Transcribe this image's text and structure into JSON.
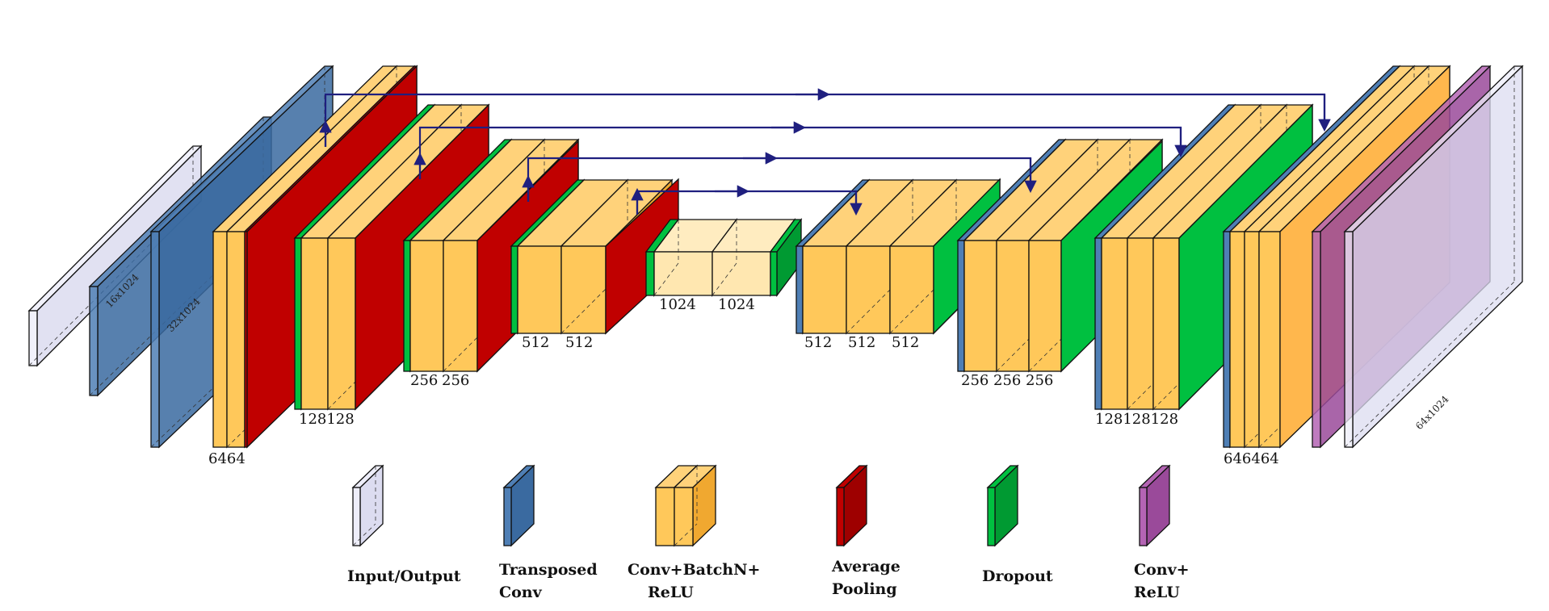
{
  "colors": {
    "conv": "#ffc85a",
    "conv_side": "#f0a830",
    "conv_top": "#ffd27a",
    "pool": "#c00000",
    "pool_side": "#9e0000",
    "dropout": "#00c040",
    "dropout_side": "#009a32",
    "transposed": "#4f7fb5",
    "transposed_side": "#3a6aa0",
    "io": "#eeeefa",
    "io_side": "#dcdcf0",
    "final": "#b464b4",
    "final_side": "#9a4a9a",
    "skip": "#1f1f7f"
  },
  "encoder": {
    "block1": {
      "labels": [
        "64",
        "64"
      ]
    },
    "block2": {
      "labels": [
        "128",
        "128"
      ]
    },
    "block3": {
      "labels": [
        "256",
        "256"
      ]
    },
    "block4": {
      "labels": [
        "512",
        "512"
      ]
    },
    "bottleneck": {
      "labels": [
        "1024",
        "1024"
      ]
    }
  },
  "decoder": {
    "block4": {
      "labels": [
        "512",
        "512",
        "512"
      ]
    },
    "block3": {
      "labels": [
        "256",
        "256",
        "256"
      ]
    },
    "block2": {
      "labels": [
        "128",
        "128",
        "128"
      ]
    },
    "block1": {
      "labels": [
        "64",
        "64",
        "64"
      ]
    }
  },
  "dims": {
    "input_a": "16x1024",
    "input_b": "32x1024",
    "output": "64x1024"
  },
  "legend": [
    {
      "key": "io",
      "lines": [
        "Input/Output"
      ]
    },
    {
      "key": "transposed",
      "lines": [
        "Transposed",
        "Conv"
      ]
    },
    {
      "key": "conv",
      "lines": [
        "Conv+BatchN+",
        "ReLU"
      ]
    },
    {
      "key": "pool",
      "lines": [
        "Average",
        "Pooling"
      ]
    },
    {
      "key": "dropout",
      "lines": [
        "Dropout"
      ]
    },
    {
      "key": "final",
      "lines": [
        "Conv+",
        "ReLU"
      ]
    }
  ]
}
